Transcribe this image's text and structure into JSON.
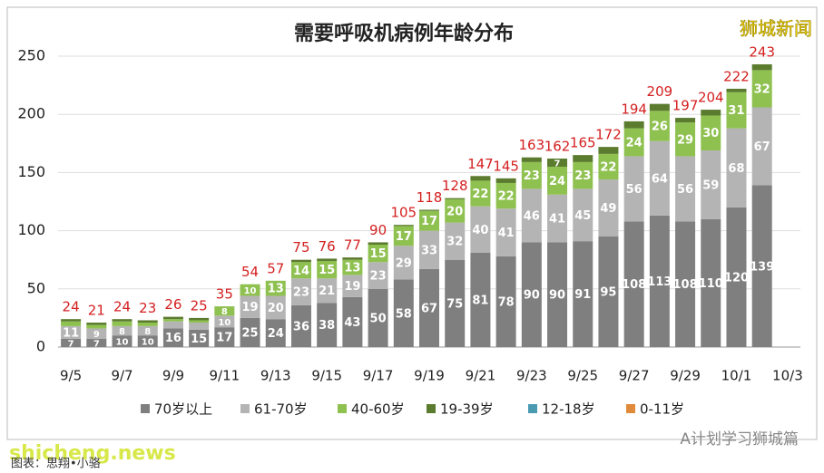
{
  "chart_data": {
    "type": "stacked_bar",
    "title": "需要呼吸机病例年龄分布",
    "categories": [
      "9/5",
      null,
      "9/7",
      null,
      "9/9",
      null,
      "9/11",
      null,
      "9/13",
      null,
      "9/15",
      null,
      "9/17",
      null,
      "9/19",
      null,
      "9/21",
      null,
      "9/23",
      null,
      "9/25",
      null,
      "9/27",
      null,
      "9/29",
      null,
      "10/1",
      null,
      "10/3"
    ],
    "series": [
      {
        "name": "70岁以上",
        "color": "#7f7f7f",
        "values": [
          7,
          7,
          10,
          10,
          16,
          15,
          17,
          25,
          24,
          36,
          38,
          43,
          50,
          58,
          67,
          75,
          81,
          78,
          90,
          90,
          91,
          95,
          108,
          113,
          108,
          110,
          120,
          139,
          null
        ]
      },
      {
        "name": "61-70岁",
        "color": "#b4b4b4",
        "values": [
          11,
          9,
          8,
          8,
          6,
          6,
          10,
          19,
          20,
          23,
          21,
          19,
          23,
          29,
          33,
          32,
          40,
          41,
          46,
          41,
          45,
          49,
          56,
          64,
          56,
          59,
          68,
          67,
          null
        ]
      },
      {
        "name": "40-60岁",
        "color": "#8fc151",
        "values": [
          4,
          3,
          4,
          3,
          2,
          2,
          8,
          10,
          13,
          14,
          15,
          13,
          15,
          17,
          17,
          20,
          22,
          22,
          23,
          24,
          23,
          22,
          24,
          26,
          29,
          30,
          31,
          32,
          null
        ]
      },
      {
        "name": "19-39岁",
        "color": "#5b7b2f",
        "values": [
          2,
          2,
          2,
          2,
          2,
          2,
          0,
          0,
          0,
          2,
          2,
          2,
          2,
          1,
          1,
          1,
          4,
          4,
          4,
          7,
          6,
          6,
          6,
          6,
          4,
          5,
          3,
          5,
          null
        ]
      },
      {
        "name": "12-18岁",
        "color": "#4a9bb1",
        "values": [
          0,
          0,
          0,
          0,
          0,
          0,
          0,
          0,
          0,
          0,
          0,
          0,
          0,
          0,
          0,
          0,
          0,
          0,
          0,
          0,
          0,
          0,
          0,
          0,
          0,
          0,
          0,
          0,
          null
        ]
      },
      {
        "name": "0-11岁",
        "color": "#e08a3c",
        "values": [
          0,
          0,
          0,
          0,
          0,
          0,
          0,
          0,
          0,
          0,
          0,
          0,
          0,
          0,
          0,
          0,
          0,
          0,
          0,
          0,
          0,
          0,
          0,
          0,
          0,
          0,
          0,
          0,
          null
        ]
      }
    ],
    "totals": [
      24,
      21,
      24,
      23,
      26,
      25,
      35,
      54,
      57,
      75,
      76,
      77,
      90,
      105,
      118,
      128,
      147,
      145,
      163,
      162,
      165,
      172,
      194,
      209,
      197,
      204,
      222,
      243,
      null
    ],
    "ylim": [
      0,
      250
    ],
    "yticks": [
      0,
      50,
      100,
      150,
      200,
      250
    ],
    "grid": true,
    "legend": "bottom"
  },
  "watermarks": {
    "top_right": "狮城新闻",
    "bottom_left": "shicheng.news",
    "bottom_right": "A计划学习狮城篇",
    "credit": "图表：思翔•小骆"
  }
}
